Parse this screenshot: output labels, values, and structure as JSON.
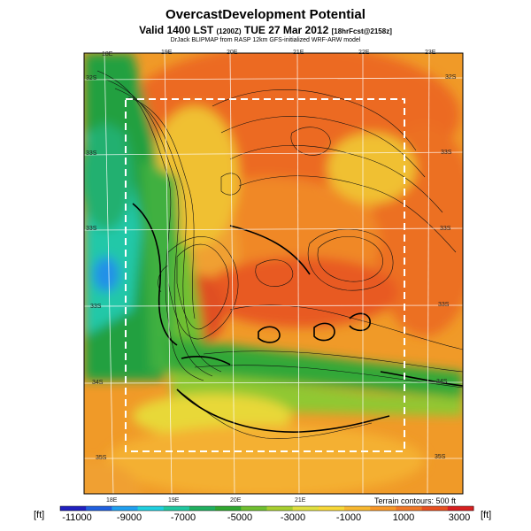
{
  "header": {
    "title": "OvercastDevelopment Potential",
    "valid_main": "Valid 1400 LST",
    "valid_z": "(1200Z)",
    "valid_date": "TUE 27 Mar 2012",
    "valid_fcst": "[18hrFcst@2158z]",
    "subtitle": "DrJack BLIPMAP from RASP 12km GFS-initialized WRF-ARW model"
  },
  "map": {
    "top_lon_labels": [
      "18E",
      "19E",
      "20E",
      "21E",
      "22E",
      "23E"
    ],
    "bottom_lon_labels": [
      "18E",
      "19E",
      "20E",
      "21E"
    ],
    "left_lat_labels": [
      "32S",
      "33S",
      "33S",
      "33S",
      "34S",
      "35S"
    ],
    "right_lat_labels": [
      "32S",
      "33S",
      "33S",
      "33S",
      "34S",
      "35S"
    ],
    "terrain_note": "Terrain contours: 500 ft"
  },
  "colorbar": {
    "unit_left": "[ft]",
    "unit_right": "[ft]",
    "ticks": [
      "-11000",
      "-9000",
      "-7000",
      "-5000",
      "-3000",
      "-1000",
      "1000",
      "3000"
    ],
    "colors": [
      "#2020c0",
      "#2060e0",
      "#20a0f0",
      "#20d0e0",
      "#20c8a0",
      "#20b060",
      "#30a830",
      "#70c030",
      "#a8d030",
      "#e0e040",
      "#f8d838",
      "#f8b830",
      "#f89828",
      "#f07828",
      "#e85020",
      "#d82020"
    ]
  }
}
